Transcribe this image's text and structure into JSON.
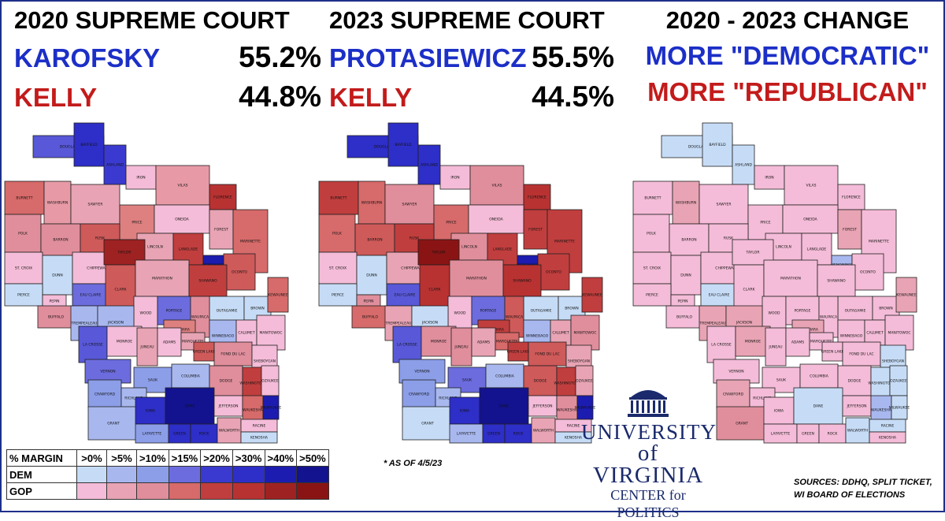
{
  "panels": [
    {
      "title": "2020 SUPREME COURT",
      "dem_name": "KAROFSKY",
      "dem_pct": "55.2%",
      "gop_name": "KELLY",
      "gop_pct": "44.8%"
    },
    {
      "title": "2023 SUPREME COURT",
      "dem_name": "PROTASIEWICZ",
      "dem_pct": "55.5%",
      "gop_name": "KELLY",
      "gop_pct": "44.5%"
    },
    {
      "title": "2020 - 2023 CHANGE",
      "dem_name": "MORE \"DEMOCRATIC\"",
      "gop_name": "MORE \"REPUBLICAN\""
    }
  ],
  "map_labels": [
    "DOUGLAS",
    "BAYFIELD",
    "ASHLAND",
    "IRON",
    "VILAS",
    "FLORENCE",
    "BURNETT",
    "WASHBURN",
    "SAWYER",
    "PRICE",
    "ONEIDA",
    "FOREST",
    "POLK",
    "BARRON",
    "RUSK",
    "LINCOLN",
    "LANGLADE",
    "MARINETTE",
    "ST. CROIX",
    "DUNN",
    "CHIPPEWA",
    "TAYLOR",
    "MENOMINEE",
    "OCONTO",
    "PIERCE",
    "EAU CLAIRE",
    "CLARK",
    "MARATHON",
    "SHAWANO",
    "PEPIN",
    "BUFFALO",
    "WOOD",
    "PORTAGE",
    "OUTAGAMIE",
    "BROWN",
    "KEWAUNEE",
    "TREMPEALEAU",
    "JACKSON",
    "WAUPACA",
    "WAUSHARA",
    "WINNEBAGO",
    "CALUMET",
    "MANITOWOC",
    "LA CROSSE",
    "MONROE",
    "JUNEAU",
    "ADAMS",
    "MARQUETTE",
    "GREEN LAKE",
    "FOND DU LAC",
    "SHEBOYGAN",
    "VERNON",
    "SAUK",
    "COLUMBIA",
    "DODGE",
    "WASHINGTON",
    "OZAUKEE",
    "CRAWFORD",
    "RICHLAND",
    "GRANT",
    "IOWA",
    "DANE",
    "JEFFERSON",
    "WAUKESHA",
    "MILWAUKEE",
    "LAFAYETTE",
    "GREEN",
    "ROCK",
    "WALWORTH",
    "RACINE",
    "KENOSHA"
  ],
  "map_colors": {
    "2020": {
      "DOUGLAS": "#5858d8",
      "BAYFIELD": "#2e2ec8",
      "ASHLAND": "#3a3ad0",
      "IRON": "#f4bcd8",
      "VILAS": "#e79aa6",
      "FLORENCE": "#b83232",
      "BURNETT": "#d76a6a",
      "WASHBURN": "#e79aa6",
      "SAWYER": "#e8a4b4",
      "PRICE": "#de8080",
      "ONEIDA": "#f4bcd8",
      "FOREST": "#e8a4b4",
      "POLK": "#e08e9c",
      "BARRON": "#e08e9c",
      "RUSK": "#cf5a5a",
      "LINCOLN": "#e8a4b4",
      "LANGLADE": "#c13e3e",
      "MARINETTE": "#d76a6a",
      "ST. CROIX": "#f4bcd8",
      "DUNN": "#c6dcf6",
      "CHIPPEWA": "#f4bcd8",
      "TAYLOR": "#9e2222",
      "MENOMINEE": "#1c1cb0",
      "OCONTO": "#cf5a5a",
      "PIERCE": "#c6dcf6",
      "EAU CLAIRE": "#6c6cde",
      "CLARK": "#cf5a5a",
      "MARATHON": "#e8a4b4",
      "SHAWANO": "#c13e3e",
      "PEPIN": "#f4bcd8",
      "BUFFALO": "#e08e9c",
      "WOOD": "#f4bcd8",
      "PORTAGE": "#6c6cde",
      "OUTAGAMIE": "#c6dcf6",
      "BROWN": "#c6dcf6",
      "KEWAUNEE": "#d76a6a",
      "TREMPEALEAU": "#a8b8ef",
      "JACKSON": "#a8b8ef",
      "WAUPACA": "#e08e9c",
      "WAUSHARA": "#de8080",
      "WINNEBAGO": "#a8b8ef",
      "CALUMET": "#f4bcd8",
      "MANITOWOC": "#f4bcd8",
      "LA CROSSE": "#5858d8",
      "MONROE": "#f4bcd8",
      "JUNEAU": "#e8a4b4",
      "ADAMS": "#f4bcd8",
      "MARQUETTE": "#e8a4b4",
      "GREEN LAKE": "#cf5a5a",
      "FOND DU LAC": "#e08e9c",
      "SHEBOYGAN": "#f4bcd8",
      "VERNON": "#6c6cde",
      "SAUK": "#8c9ee8",
      "COLUMBIA": "#a8b8ef",
      "DODGE": "#e08e9c",
      "WASHINGTON": "#c13e3e",
      "OZAUKEE": "#f4bcd8",
      "CRAWFORD": "#8c9ee8",
      "RICHLAND": "#a8b8ef",
      "GRANT": "#a8b8ef",
      "IOWA": "#2e2ec8",
      "DANE": "#13138f",
      "JEFFERSON": "#f4bcd8",
      "WAUKESHA": "#d76a6a",
      "MILWAUKEE": "#1c1cb0",
      "LAFAYETTE": "#8c9ee8",
      "GREEN": "#2e2ec8",
      "ROCK": "#2e2ec8",
      "WALWORTH": "#e8a4b4",
      "RACINE": "#f4bcd8",
      "KENOSHA": "#c6dcf6"
    },
    "2023": {
      "DOUGLAS": "#2e2ec8",
      "BAYFIELD": "#2e2ec8",
      "ASHLAND": "#2e2ec8",
      "IRON": "#f4bcd8",
      "VILAS": "#e08e9c",
      "FLORENCE": "#b83232",
      "BURNETT": "#c13e3e",
      "WASHBURN": "#d76a6a",
      "SAWYER": "#e08e9c",
      "PRICE": "#d76a6a",
      "ONEIDA": "#f4bcd8",
      "FOREST": "#c13e3e",
      "POLK": "#d76a6a",
      "BARRON": "#cf5a5a",
      "RUSK": "#c13e3e",
      "LINCOLN": "#e08e9c",
      "LANGLADE": "#c13e3e",
      "MARINETTE": "#c13e3e",
      "ST. CROIX": "#f4bcd8",
      "DUNN": "#c6dcf6",
      "CHIPPEWA": "#e8a4b4",
      "TAYLOR": "#8a1414",
      "MENOMINEE": "#1c1cb0",
      "OCONTO": "#c13e3e",
      "PIERCE": "#c6dcf6",
      "EAU CLAIRE": "#5858d8",
      "CLARK": "#b83232",
      "MARATHON": "#e08e9c",
      "SHAWANO": "#b83232",
      "PEPIN": "#e08e9c",
      "BUFFALO": "#d76a6a",
      "WOOD": "#f4bcd8",
      "PORTAGE": "#6c6cde",
      "OUTAGAMIE": "#c6dcf6",
      "BROWN": "#c6dcf6",
      "KEWAUNEE": "#c13e3e",
      "TREMPEALEAU": "#e8a4b4",
      "JACKSON": "#c6dcf6",
      "WAUPACA": "#cf5a5a",
      "WAUSHARA": "#c13e3e",
      "WINNEBAGO": "#a8b8ef",
      "CALUMET": "#e8a4b4",
      "MANITOWOC": "#e08e9c",
      "LA CROSSE": "#5858d8",
      "MONROE": "#e08e9c",
      "JUNEAU": "#e08e9c",
      "ADAMS": "#e8a4b4",
      "MARQUETTE": "#d76a6a",
      "GREEN LAKE": "#c13e3e",
      "FOND DU LAC": "#cf5a5a",
      "SHEBOYGAN": "#e8a4b4",
      "VERNON": "#8c9ee8",
      "SAUK": "#6c6cde",
      "COLUMBIA": "#a8b8ef",
      "DODGE": "#cf5a5a",
      "WASHINGTON": "#c13e3e",
      "OZAUKEE": "#e8a4b4",
      "CRAWFORD": "#8c9ee8",
      "RICHLAND": "#a8b8ef",
      "GRANT": "#c6dcf6",
      "IOWA": "#2e2ec8",
      "DANE": "#13138f",
      "JEFFERSON": "#f4bcd8",
      "WAUKESHA": "#e08e9c",
      "MILWAUKEE": "#1c1cb0",
      "LAFAYETTE": "#a8b8ef",
      "GREEN": "#2e2ec8",
      "ROCK": "#2e2ec8",
      "WALWORTH": "#e8a4b4",
      "RACINE": "#f4bcd8",
      "KENOSHA": "#c6dcf6"
    },
    "change": {
      "DOUGLAS": "#c6dcf6",
      "BAYFIELD": "#c6dcf6",
      "ASHLAND": "#c6dcf6",
      "IRON": "#f4bcd8",
      "VILAS": "#f4bcd8",
      "FLORENCE": "#f4bcd8",
      "BURNETT": "#f4bcd8",
      "WASHBURN": "#e8a4b4",
      "SAWYER": "#f4bcd8",
      "PRICE": "#f4bcd8",
      "ONEIDA": "#f4bcd8",
      "FOREST": "#e8a4b4",
      "POLK": "#f4bcd8",
      "BARRON": "#f4bcd8",
      "RUSK": "#f4bcd8",
      "LINCOLN": "#f4bcd8",
      "LANGLADE": "#f4bcd8",
      "MARINETTE": "#f4bcd8",
      "ST. CROIX": "#f4bcd8",
      "DUNN": "#f4bcd8",
      "CHIPPEWA": "#f4bcd8",
      "TAYLOR": "#f4bcd8",
      "MENOMINEE": "#a8b8ef",
      "OCONTO": "#f4bcd8",
      "PIERCE": "#f4bcd8",
      "EAU CLAIRE": "#c6dcf6",
      "CLARK": "#f4bcd8",
      "MARATHON": "#f4bcd8",
      "SHAWANO": "#f4bcd8",
      "PEPIN": "#f4bcd8",
      "BUFFALO": "#f4bcd8",
      "WOOD": "#f4bcd8",
      "PORTAGE": "#f4bcd8",
      "OUTAGAMIE": "#f4bcd8",
      "BROWN": "#f4bcd8",
      "KEWAUNEE": "#e8a4b4",
      "TREMPEALEAU": "#e8a4b4",
      "JACKSON": "#e8a4b4",
      "WAUPACA": "#f4bcd8",
      "WAUSHARA": "#e8a4b4",
      "WINNEBAGO": "#f4bcd8",
      "CALUMET": "#f4bcd8",
      "MANITOWOC": "#f4bcd8",
      "LA CROSSE": "#f4bcd8",
      "MONROE": "#e8a4b4",
      "JUNEAU": "#f4bcd8",
      "ADAMS": "#f4bcd8",
      "MARQUETTE": "#f4bcd8",
      "GREEN LAKE": "#f4bcd8",
      "FOND DU LAC": "#f4bcd8",
      "SHEBOYGAN": "#c6dcf6",
      "VERNON": "#f4bcd8",
      "SAUK": "#f4bcd8",
      "COLUMBIA": "#f4bcd8",
      "DODGE": "#f4bcd8",
      "WASHINGTON": "#c6dcf6",
      "OZAUKEE": "#c6dcf6",
      "CRAWFORD": "#e8a4b4",
      "RICHLAND": "#f4bcd8",
      "GRANT": "#e08e9c",
      "IOWA": "#f4bcd8",
      "DANE": "#c6dcf6",
      "JEFFERSON": "#f4bcd8",
      "WAUKESHA": "#a8b8ef",
      "MILWAUKEE": "#c6dcf6",
      "LAFAYETTE": "#f4bcd8",
      "GREEN": "#f4bcd8",
      "ROCK": "#f4bcd8",
      "WALWORTH": "#c6dcf6",
      "RACINE": "#c6dcf6",
      "KENOSHA": "#f4bcd8"
    }
  },
  "legend": {
    "header": "% MARGIN",
    "bins": [
      ">0%",
      ">5%",
      ">10%",
      ">15%",
      ">20%",
      ">30%",
      ">40%",
      ">50%"
    ],
    "dem_label": "DEM",
    "gop_label": "GOP",
    "dem_colors": [
      "#c6dcf6",
      "#a8b8ef",
      "#8c9ee8",
      "#6c6cde",
      "#3a3ad0",
      "#2e2ec8",
      "#1c1cb0",
      "#13138f"
    ],
    "gop_colors": [
      "#f4bcd8",
      "#e8a4b4",
      "#e08e9c",
      "#d76a6a",
      "#c13e3e",
      "#b83232",
      "#9e2222",
      "#8a1414"
    ]
  },
  "note": "* AS OF 4/5/23",
  "logo": {
    "line1": "UNIVERSITY",
    "line2": "of VIRGINIA",
    "line3": "CENTER for POLITICS"
  },
  "sources": {
    "line1": "SOURCES: DDHQ, SPLIT TICKET,",
    "line2": "WI BOARD OF ELECTIONS"
  },
  "colors": {
    "dem_text": "#1c2fc7",
    "gop_text": "#c31b1b",
    "border": "#1e2f8a",
    "outline": "#202020"
  }
}
